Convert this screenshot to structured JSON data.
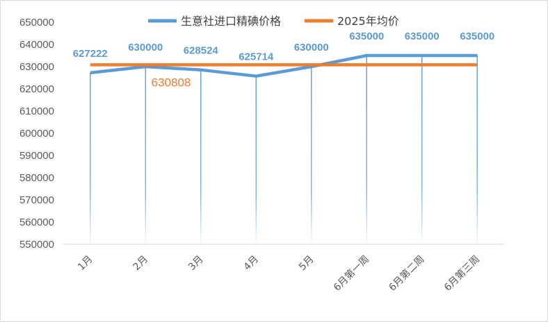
{
  "chart_data": {
    "type": "line",
    "categories": [
      "1月",
      "2月",
      "3月",
      "4月",
      "5月",
      "6月第一周",
      "6月第二周",
      "6月第三周"
    ],
    "series": [
      {
        "name": "生意社进口精碘价格",
        "values": [
          627222,
          630000,
          628524,
          625714,
          630000,
          635000,
          635000,
          635000
        ],
        "color": "#5b9bd5"
      },
      {
        "name": "2025年均价",
        "values": [
          630808,
          630808,
          630808,
          630808,
          630808,
          630808,
          630808,
          630808
        ],
        "color": "#ed7d31"
      }
    ],
    "data_labels": [
      "627222",
      "630000",
      "628524",
      "625714",
      "630000",
      "635000",
      "635000",
      "635000"
    ],
    "average_label": "630808",
    "ylim": [
      550000,
      650000
    ],
    "yticks": [
      550000,
      560000,
      570000,
      580000,
      590000,
      600000,
      610000,
      620000,
      630000,
      640000,
      650000
    ],
    "grid": "vertical",
    "legend_position": "top"
  }
}
